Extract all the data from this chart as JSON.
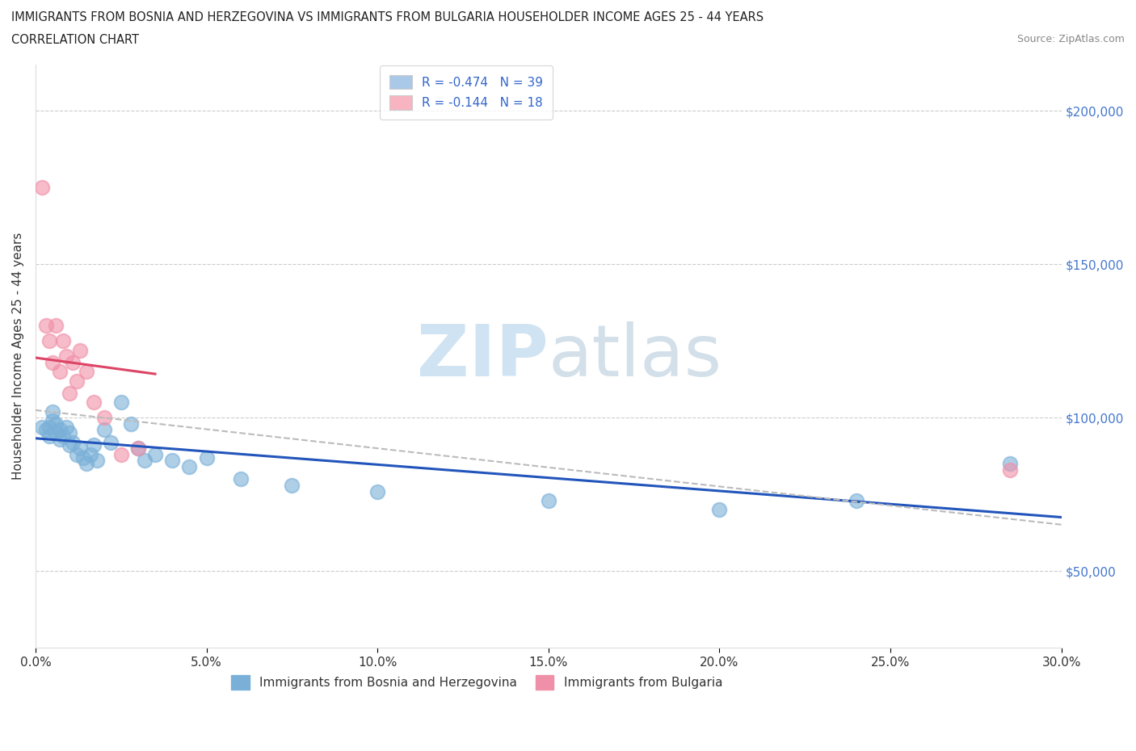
{
  "title_line1": "IMMIGRANTS FROM BOSNIA AND HERZEGOVINA VS IMMIGRANTS FROM BULGARIA HOUSEHOLDER INCOME AGES 25 - 44 YEARS",
  "title_line2": "CORRELATION CHART",
  "source_text": "Source: ZipAtlas.com",
  "ylabel": "Householder Income Ages 25 - 44 years",
  "xlim": [
    0.0,
    0.3
  ],
  "ylim": [
    25000,
    215000
  ],
  "yticks": [
    50000,
    100000,
    150000,
    200000
  ],
  "xticks": [
    0.0,
    0.05,
    0.1,
    0.15,
    0.2,
    0.25,
    0.3
  ],
  "xtick_labels": [
    "0.0%",
    "5.0%",
    "10.0%",
    "15.0%",
    "20.0%",
    "25.0%",
    "30.0%"
  ],
  "ytick_labels": [
    "$50,000",
    "$100,000",
    "$150,000",
    "$200,000"
  ],
  "watermark_zip": "ZIP",
  "watermark_atlas": "atlas",
  "legend_label_blue": "R = -0.474   N = 39",
  "legend_label_pink": "R = -0.144   N = 18",
  "legend_color_blue": "#aac8e8",
  "legend_color_pink": "#f8b4c0",
  "bosnia_scatter": [
    [
      0.002,
      97000
    ],
    [
      0.003,
      96000
    ],
    [
      0.004,
      94000
    ],
    [
      0.004,
      97000
    ],
    [
      0.005,
      99000
    ],
    [
      0.005,
      102000
    ],
    [
      0.006,
      95000
    ],
    [
      0.006,
      98000
    ],
    [
      0.007,
      93000
    ],
    [
      0.007,
      96000
    ],
    [
      0.008,
      94000
    ],
    [
      0.009,
      97000
    ],
    [
      0.01,
      91000
    ],
    [
      0.01,
      95000
    ],
    [
      0.011,
      92000
    ],
    [
      0.012,
      88000
    ],
    [
      0.013,
      90000
    ],
    [
      0.014,
      87000
    ],
    [
      0.015,
      85000
    ],
    [
      0.016,
      88000
    ],
    [
      0.017,
      91000
    ],
    [
      0.018,
      86000
    ],
    [
      0.02,
      96000
    ],
    [
      0.022,
      92000
    ],
    [
      0.025,
      105000
    ],
    [
      0.028,
      98000
    ],
    [
      0.03,
      90000
    ],
    [
      0.032,
      86000
    ],
    [
      0.035,
      88000
    ],
    [
      0.04,
      86000
    ],
    [
      0.045,
      84000
    ],
    [
      0.05,
      87000
    ],
    [
      0.06,
      80000
    ],
    [
      0.075,
      78000
    ],
    [
      0.1,
      76000
    ],
    [
      0.15,
      73000
    ],
    [
      0.2,
      70000
    ],
    [
      0.24,
      73000
    ],
    [
      0.285,
      85000
    ]
  ],
  "bulgaria_scatter": [
    [
      0.002,
      175000
    ],
    [
      0.003,
      130000
    ],
    [
      0.004,
      125000
    ],
    [
      0.005,
      118000
    ],
    [
      0.006,
      130000
    ],
    [
      0.007,
      115000
    ],
    [
      0.008,
      125000
    ],
    [
      0.009,
      120000
    ],
    [
      0.01,
      108000
    ],
    [
      0.011,
      118000
    ],
    [
      0.012,
      112000
    ],
    [
      0.013,
      122000
    ],
    [
      0.015,
      115000
    ],
    [
      0.017,
      105000
    ],
    [
      0.02,
      100000
    ],
    [
      0.025,
      88000
    ],
    [
      0.03,
      90000
    ],
    [
      0.285,
      83000
    ]
  ],
  "bosnia_color": "#7ab0d8",
  "bulgaria_color": "#f090a8",
  "bosnia_line_color": "#2255bb",
  "bulgaria_line_color": "#dd4466",
  "dashed_line_color": "#bbbbbb",
  "grid_color": "#cccccc",
  "bg_color": "#ffffff"
}
